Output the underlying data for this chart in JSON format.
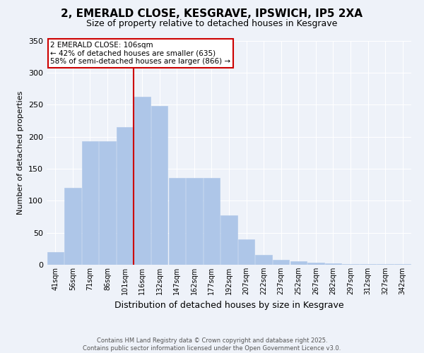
{
  "title": "2, EMERALD CLOSE, KESGRAVE, IPSWICH, IP5 2XA",
  "subtitle": "Size of property relative to detached houses in Kesgrave",
  "xlabel": "Distribution of detached houses by size in Kesgrave",
  "ylabel": "Number of detached properties",
  "categories": [
    "41sqm",
    "56sqm",
    "71sqm",
    "86sqm",
    "101sqm",
    "116sqm",
    "132sqm",
    "147sqm",
    "162sqm",
    "177sqm",
    "192sqm",
    "207sqm",
    "222sqm",
    "237sqm",
    "252sqm",
    "267sqm",
    "282sqm",
    "297sqm",
    "312sqm",
    "327sqm",
    "342sqm"
  ],
  "values": [
    20,
    120,
    193,
    193,
    215,
    262,
    248,
    136,
    136,
    136,
    77,
    40,
    15,
    8,
    5,
    3,
    2,
    1,
    1,
    1,
    1
  ],
  "bar_color": "#aec6e8",
  "bar_edgecolor": "#aec6e8",
  "vline_x": 4.5,
  "vline_color": "#cc0000",
  "annotation_text": "2 EMERALD CLOSE: 106sqm\n← 42% of detached houses are smaller (635)\n58% of semi-detached houses are larger (866) →",
  "annotation_box_color": "#ffffff",
  "annotation_box_edgecolor": "#cc0000",
  "footer_text": "Contains HM Land Registry data © Crown copyright and database right 2025.\nContains public sector information licensed under the Open Government Licence v3.0.",
  "ylim": [
    0,
    350
  ],
  "yticks": [
    0,
    50,
    100,
    150,
    200,
    250,
    300,
    350
  ],
  "bg_color": "#eef2f9",
  "plot_bg_color": "#eef2f9",
  "grid_color": "#ffffff",
  "title_fontsize": 11,
  "subtitle_fontsize": 9,
  "tick_fontsize": 7,
  "ylabel_fontsize": 8,
  "xlabel_fontsize": 9,
  "annotation_fontsize": 7.5,
  "footer_fontsize": 6
}
